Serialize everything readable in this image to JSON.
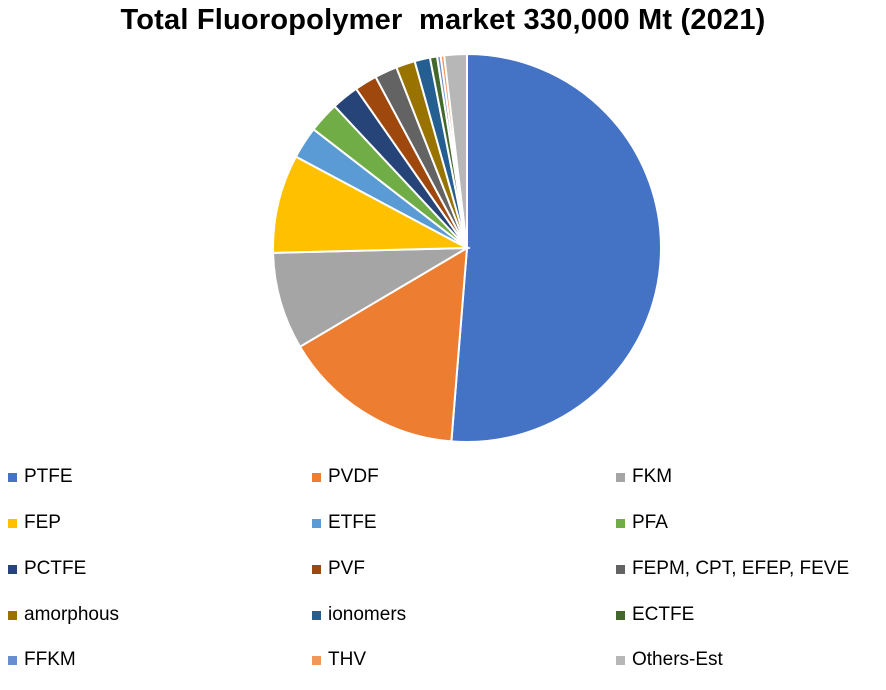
{
  "chart_data": {
    "type": "pie",
    "title": "Total Fluoropolymer  market 330,000 Mt (2021)",
    "legend_position": "bottom",
    "slices": [
      {
        "label": "PTFE",
        "value": 51.9,
        "color": "#4472C4"
      },
      {
        "label": "PVDF",
        "value": 15.4,
        "color": "#ED7D31"
      },
      {
        "label": "FKM",
        "value": 8.2,
        "color": "#A5A5A5"
      },
      {
        "label": "FEP",
        "value": 8.3,
        "color": "#FFC000"
      },
      {
        "label": "ETFE",
        "value": 2.7,
        "color": "#5B9BD5"
      },
      {
        "label": "PFA",
        "value": 2.6,
        "color": "#70AD47"
      },
      {
        "label": "PCTFE",
        "value": 2.3,
        "color": "#264478"
      },
      {
        "label": "PVF",
        "value": 1.9,
        "color": "#9E480E"
      },
      {
        "label": "FEPM, CPT, EFEP, FEVE",
        "value": 1.9,
        "color": "#636363"
      },
      {
        "label": "amorphous",
        "value": 1.6,
        "color": "#997300"
      },
      {
        "label": "ionomers",
        "value": 1.3,
        "color": "#255E91"
      },
      {
        "label": "ECTFE",
        "value": 0.6,
        "color": "#43682B"
      },
      {
        "label": "FFKM",
        "value": 0.3,
        "color": "#698ED0"
      },
      {
        "label": "THV",
        "value": 0.3,
        "color": "#F1975A"
      },
      {
        "label": "Others-Est",
        "value": 1.9,
        "color": "#B7B7B7"
      }
    ]
  }
}
